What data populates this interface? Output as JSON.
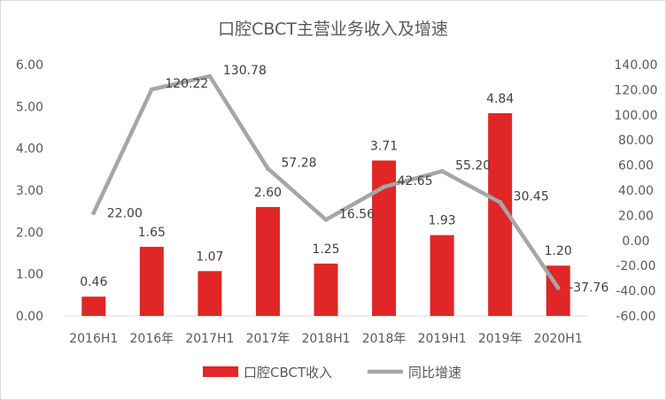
{
  "chart_data": {
    "type": "bar",
    "title": "口腔CBCT主营业务收入及增速",
    "categories": [
      "2016H1",
      "2016年",
      "2017H1",
      "2017年",
      "2018H1",
      "2018年",
      "2019H1",
      "2019年",
      "2020H1"
    ],
    "series": [
      {
        "name": "口腔CBCT收入",
        "type": "bar",
        "axis": "left",
        "color": "#e02626",
        "values": [
          0.46,
          1.65,
          1.07,
          2.6,
          1.25,
          3.71,
          1.93,
          4.84,
          1.2
        ],
        "labels": [
          "0.46",
          "1.65",
          "1.07",
          "2.60",
          "1.25",
          "3.71",
          "1.93",
          "4.84",
          "1.20"
        ]
      },
      {
        "name": "同比增速",
        "type": "line",
        "axis": "right",
        "color": "#a6a6a6",
        "values": [
          22.0,
          120.22,
          130.78,
          57.28,
          16.56,
          42.65,
          55.2,
          30.45,
          -37.76
        ],
        "labels": [
          "22.00",
          "120.22",
          "130.78",
          "57.28",
          "16.56",
          "42.65",
          "55.20",
          "30.45",
          "-37.76"
        ]
      }
    ],
    "y_left": {
      "min": 0,
      "max": 6,
      "ticks": [
        "0.00",
        "1.00",
        "2.00",
        "3.00",
        "4.00",
        "5.00",
        "6.00"
      ]
    },
    "y_right": {
      "min": -60,
      "max": 140,
      "ticks": [
        "-60.00",
        "-40.00",
        "-20.00",
        "0.00",
        "20.00",
        "40.00",
        "60.00",
        "80.00",
        "100.00",
        "120.00",
        "140.00"
      ]
    },
    "grid": false,
    "legend": "bottom"
  }
}
